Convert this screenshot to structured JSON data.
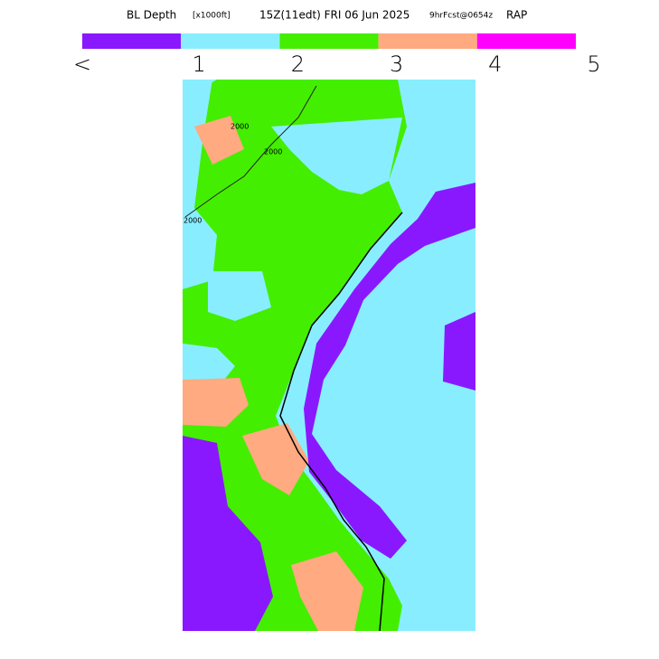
{
  "header": {
    "title_main": "BL Depth",
    "units": "[x1000ft]",
    "valid_time": "15Z(11edt) FRI 06 Jun 2025",
    "forecast": "9hrFcst@0654z",
    "model": "RAP"
  },
  "colorbar": {
    "colors": [
      "#8a18ff",
      "#88eeff",
      "#44ee00",
      "#ffaa80",
      "#ff00ff"
    ],
    "labels": [
      "<",
      "1",
      "2",
      "3",
      "4",
      "5"
    ]
  },
  "map": {
    "contour_labels": [
      "2000",
      "2000",
      "2000"
    ]
  }
}
